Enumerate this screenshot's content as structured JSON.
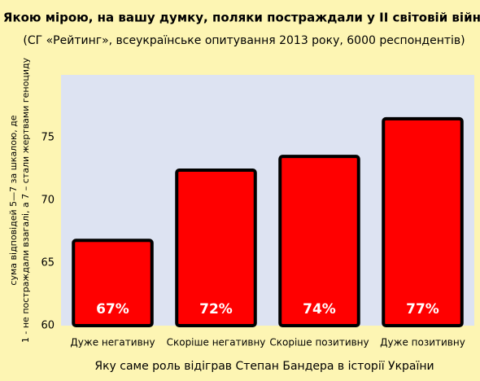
{
  "chart_data": {
    "type": "bar",
    "title": "Якою мірою, на вашу думку, поляки постраждали у ІІ світовій війні",
    "subtitle": "(СГ «Рейтинг», всеукраїнське опитування 2013 року, 6000 респондентів)",
    "y_label": [
      "сума відповідей 5—7 за шкалою, де",
      "1 - не постраждали взагалі, а 7 – стали жертвами геноциду"
    ],
    "x_label": "Яку саме роль відіграв Степан Бандера в історії України",
    "categories": [
      "Дуже негативну",
      "Скоріше негативну",
      "Скоріше позитивну",
      "Дуже позитивну"
    ],
    "values": [
      66.8,
      72.4,
      73.5,
      76.5
    ],
    "value_labels": [
      "67%",
      "72%",
      "74%",
      "77%"
    ],
    "color": "#ff0000",
    "plot_background": "#dde3f2",
    "ylim": [
      60,
      80
    ],
    "yticks": [
      60,
      65,
      70,
      75
    ]
  }
}
